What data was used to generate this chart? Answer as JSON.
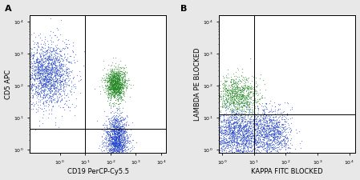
{
  "panel_A": {
    "label": "A",
    "xlabel": "CD19 PerCP-Cy5.5",
    "ylabel": "CD5 APC",
    "gate_x_log": 1.0,
    "gate_y_log": 0.65,
    "blue1_xmean": -0.5,
    "blue1_xstd": 0.5,
    "blue1_ymean": 2.35,
    "blue1_ystd": 0.5,
    "blue1_n": 1800,
    "blue2_xmean": 2.25,
    "blue2_xstd": 0.22,
    "blue2_ymean": 0.3,
    "blue2_ystd": 0.4,
    "blue2_n": 1500,
    "green_xmean": 2.2,
    "green_xstd": 0.2,
    "green_ymean": 2.05,
    "green_ystd": 0.25,
    "green_n": 1200,
    "xlim_log": [
      -1.2,
      4.2
    ],
    "ylim_log": [
      -0.1,
      4.2
    ]
  },
  "panel_B": {
    "label": "B",
    "xlabel": "KAPPA FITC BLOCKED",
    "ylabel": "LAMBDA PE BLOCKED",
    "gate_x_log": 1.0,
    "gate_y_log": 1.1,
    "blue1_xmean": 0.5,
    "blue1_xstd": 0.55,
    "blue1_ymean": 0.5,
    "blue1_ystd": 0.4,
    "blue1_n": 2000,
    "blue2_xmean": 1.6,
    "blue2_xstd": 0.3,
    "blue2_ymean": 0.5,
    "blue2_ystd": 0.4,
    "blue2_n": 800,
    "green_xmean": 0.5,
    "green_xstd": 0.35,
    "green_ymean": 1.7,
    "green_ystd": 0.3,
    "green_n": 900,
    "xlim_log": [
      -0.1,
      4.2
    ],
    "ylim_log": [
      -0.1,
      4.2
    ]
  },
  "blue_color": "#2244cc",
  "green_color": "#228822",
  "point_size": 0.8,
  "point_alpha": 0.6,
  "fig_bg": "#e8e8e8",
  "plot_bg": "#ffffff",
  "label_fontsize": 6,
  "tick_fontsize": 4.5,
  "panel_label_fontsize": 8
}
